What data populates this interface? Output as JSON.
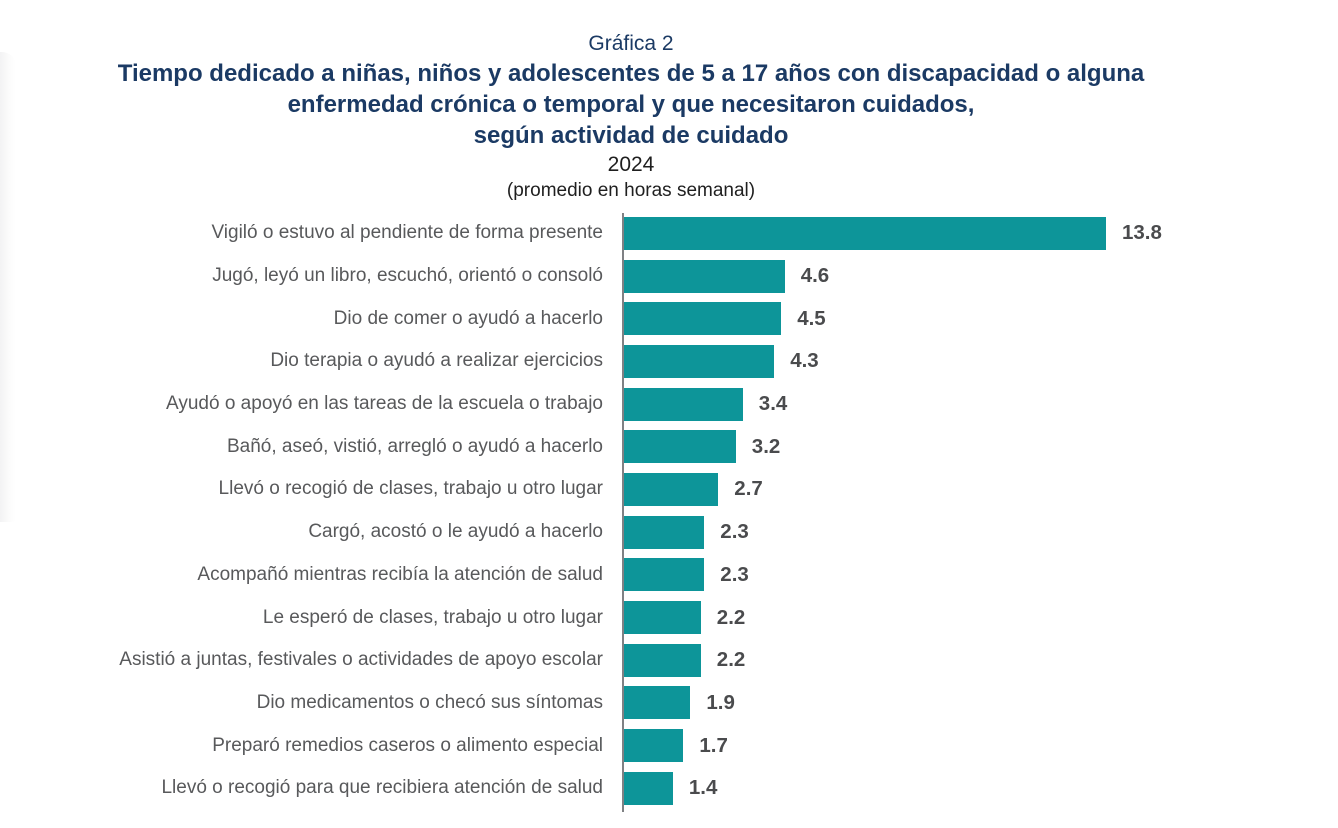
{
  "header": {
    "pretitle": "Gráfica 2",
    "title_lines": [
      "Tiempo dedicado a niñas, niños y adolescentes de 5 a 17 años con discapacidad o alguna",
      "enfermedad crónica o temporal y que necesitaron cuidados,",
      "según actividad de cuidado"
    ],
    "year": "2024",
    "subtitle": "(promedio en horas semanal)"
  },
  "chart_data": {
    "type": "bar",
    "orientation": "horizontal",
    "title": "Tiempo dedicado a niñas, niños y adolescentes de 5 a 17 años con discapacidad o alguna enfermedad crónica o temporal y que necesitaron cuidados, según actividad de cuidado",
    "subtitle": "2024 (promedio en horas semanal)",
    "xlabel": "",
    "ylabel": "",
    "unit": "horas promedio semanales",
    "xlim": [
      0,
      15
    ],
    "grid": false,
    "legend": "none",
    "categories": [
      "Vigiló o estuvo al pendiente de forma presente",
      "Jugó, leyó un libro, escuchó, orientó o consoló",
      "Dio de comer o ayudó a hacerlo",
      "Dio terapia o ayudó a realizar ejercicios",
      "Ayudó o apoyó en las tareas de la escuela o trabajo",
      "Bañó, aseó, vistió, arregló o ayudó a hacerlo",
      "Llevó o recogió de clases, trabajo u otro lugar",
      "Cargó, acostó o le ayudó a hacerlo",
      "Acompañó mientras recibía la atención de salud",
      "Le esperó de clases, trabajo u otro lugar",
      "Asistió a juntas, festivales o actividades de apoyo escolar",
      "Dio medicamentos o checó sus síntomas",
      "Preparó remedios caseros o alimento especial",
      "Llevó o recogió para que recibiera atención de salud"
    ],
    "values": [
      13.8,
      4.6,
      4.5,
      4.3,
      3.4,
      3.2,
      2.7,
      2.3,
      2.3,
      2.2,
      2.2,
      1.9,
      1.7,
      1.4
    ],
    "colors": {
      "bar": "#0d9599",
      "title_navy": "#1b3a64",
      "category_label": "#58595b",
      "value_label": "#4a4b4d",
      "axis_line": "#7f8184"
    }
  }
}
